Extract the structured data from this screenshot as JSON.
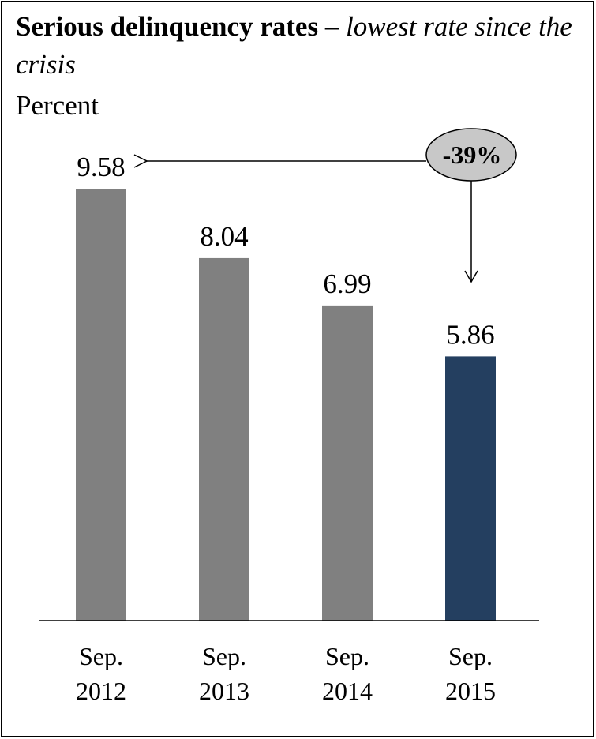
{
  "chart_data": {
    "type": "bar",
    "title": "Serious delinquency rates",
    "title_separator": " – ",
    "subtitle": "lowest rate since the crisis",
    "ylabel": "Percent",
    "categories": [
      [
        "Sep.",
        "2012"
      ],
      [
        "Sep.",
        "2013"
      ],
      [
        "Sep.",
        "2014"
      ],
      [
        "Sep.",
        "2015"
      ]
    ],
    "values": [
      9.58,
      8.04,
      6.99,
      5.86
    ],
    "value_labels": [
      "9.58",
      "8.04",
      "6.99",
      "5.86"
    ],
    "ylim": [
      0,
      9.58
    ],
    "grid": false,
    "colors": [
      "#808080",
      "#808080",
      "#808080",
      "#243f60"
    ],
    "annotation": {
      "text": "-39%",
      "from_category": 3,
      "to_category": 0,
      "fill": "#c8c8c8"
    }
  }
}
